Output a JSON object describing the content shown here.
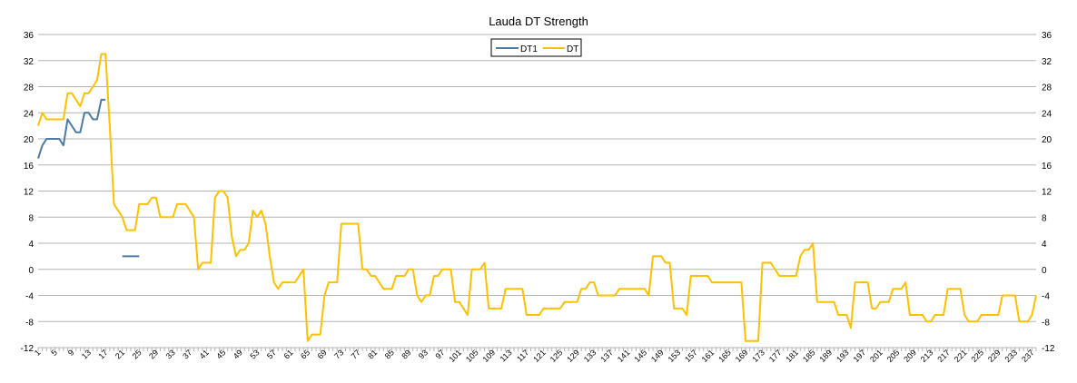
{
  "chart_data": {
    "type": "line",
    "title": "Lauda DT Strength",
    "xlabel": "",
    "ylabel": "",
    "ylim": [
      -12,
      36
    ],
    "yticks": [
      -12,
      -8,
      -4,
      0,
      4,
      8,
      12,
      16,
      20,
      24,
      28,
      32,
      36
    ],
    "xlim": [
      1,
      238
    ],
    "xtick_step": 4,
    "grid": "horizontal",
    "legend_position": "top-center",
    "colors": {
      "DT1": "#4a7ba7",
      "DT": "#ffc000",
      "grid": "#b3b3b3"
    },
    "series": [
      {
        "name": "DT1",
        "points": [
          [
            1,
            17
          ],
          [
            2,
            19
          ],
          [
            3,
            20
          ],
          [
            4,
            20
          ],
          [
            5,
            20
          ],
          [
            6,
            20
          ],
          [
            7,
            19
          ],
          [
            8,
            23
          ],
          [
            9,
            22
          ],
          [
            10,
            21
          ],
          [
            11,
            21
          ],
          [
            12,
            24
          ],
          [
            13,
            24
          ],
          [
            14,
            23
          ],
          [
            15,
            23
          ],
          [
            16,
            26
          ],
          [
            17,
            26
          ]
        ],
        "extra_segments": [
          [
            [
              21,
              2
            ],
            [
              25,
              2
            ]
          ]
        ]
      },
      {
        "name": "DT",
        "points": [
          [
            1,
            22
          ],
          [
            2,
            24
          ],
          [
            3,
            23
          ],
          [
            4,
            23
          ],
          [
            5,
            23
          ],
          [
            6,
            23
          ],
          [
            7,
            23
          ],
          [
            8,
            27
          ],
          [
            9,
            27
          ],
          [
            10,
            26
          ],
          [
            11,
            25
          ],
          [
            12,
            27
          ],
          [
            13,
            27
          ],
          [
            14,
            28
          ],
          [
            15,
            29
          ],
          [
            16,
            33
          ],
          [
            17,
            33
          ],
          [
            18,
            22
          ],
          [
            19,
            10
          ],
          [
            20,
            9
          ],
          [
            21,
            8
          ],
          [
            22,
            6
          ],
          [
            23,
            6
          ],
          [
            24,
            6
          ],
          [
            25,
            10
          ],
          [
            26,
            10
          ],
          [
            27,
            10
          ],
          [
            28,
            11
          ],
          [
            29,
            11
          ],
          [
            30,
            8
          ],
          [
            31,
            8
          ],
          [
            32,
            8
          ],
          [
            33,
            8
          ],
          [
            34,
            10
          ],
          [
            35,
            10
          ],
          [
            36,
            10
          ],
          [
            37,
            9
          ],
          [
            38,
            8
          ],
          [
            39,
            0
          ],
          [
            40,
            1
          ],
          [
            41,
            1
          ],
          [
            42,
            1
          ],
          [
            43,
            11
          ],
          [
            44,
            12
          ],
          [
            45,
            12
          ],
          [
            46,
            11
          ],
          [
            47,
            5
          ],
          [
            48,
            2
          ],
          [
            49,
            3
          ],
          [
            50,
            3
          ],
          [
            51,
            4
          ],
          [
            52,
            9
          ],
          [
            53,
            8
          ],
          [
            54,
            9
          ],
          [
            55,
            7
          ],
          [
            56,
            2
          ],
          [
            57,
            -2
          ],
          [
            58,
            -3
          ],
          [
            59,
            -2
          ],
          [
            60,
            -2
          ],
          [
            61,
            -2
          ],
          [
            62,
            -2
          ],
          [
            63,
            -1
          ],
          [
            64,
            0
          ],
          [
            65,
            -11
          ],
          [
            66,
            -10
          ],
          [
            67,
            -10
          ],
          [
            68,
            -10
          ],
          [
            69,
            -4
          ],
          [
            70,
            -2
          ],
          [
            71,
            -2
          ],
          [
            72,
            -2
          ],
          [
            73,
            7
          ],
          [
            74,
            7
          ],
          [
            75,
            7
          ],
          [
            76,
            7
          ],
          [
            77,
            7
          ],
          [
            78,
            0
          ],
          [
            79,
            0
          ],
          [
            80,
            -1
          ],
          [
            81,
            -1
          ],
          [
            82,
            -2
          ],
          [
            83,
            -3
          ],
          [
            84,
            -3
          ],
          [
            85,
            -3
          ],
          [
            86,
            -1
          ],
          [
            87,
            -1
          ],
          [
            88,
            -1
          ],
          [
            89,
            0
          ],
          [
            90,
            0
          ],
          [
            91,
            -4
          ],
          [
            92,
            -5
          ],
          [
            93,
            -4
          ],
          [
            94,
            -4
          ],
          [
            95,
            -1
          ],
          [
            96,
            -1
          ],
          [
            97,
            0
          ],
          [
            98,
            0
          ],
          [
            99,
            0
          ],
          [
            100,
            -5
          ],
          [
            101,
            -5
          ],
          [
            102,
            -6
          ],
          [
            103,
            -7
          ],
          [
            104,
            0
          ],
          [
            105,
            0
          ],
          [
            106,
            0
          ],
          [
            107,
            1
          ],
          [
            108,
            -6
          ],
          [
            109,
            -6
          ],
          [
            110,
            -6
          ],
          [
            111,
            -6
          ],
          [
            112,
            -3
          ],
          [
            113,
            -3
          ],
          [
            114,
            -3
          ],
          [
            115,
            -3
          ],
          [
            116,
            -3
          ],
          [
            117,
            -7
          ],
          [
            118,
            -7
          ],
          [
            119,
            -7
          ],
          [
            120,
            -7
          ],
          [
            121,
            -6
          ],
          [
            122,
            -6
          ],
          [
            123,
            -6
          ],
          [
            124,
            -6
          ],
          [
            125,
            -6
          ],
          [
            126,
            -5
          ],
          [
            127,
            -5
          ],
          [
            128,
            -5
          ],
          [
            129,
            -5
          ],
          [
            130,
            -3
          ],
          [
            131,
            -3
          ],
          [
            132,
            -2
          ],
          [
            133,
            -2
          ],
          [
            134,
            -4
          ],
          [
            135,
            -4
          ],
          [
            136,
            -4
          ],
          [
            137,
            -4
          ],
          [
            138,
            -4
          ],
          [
            139,
            -3
          ],
          [
            140,
            -3
          ],
          [
            141,
            -3
          ],
          [
            142,
            -3
          ],
          [
            143,
            -3
          ],
          [
            144,
            -3
          ],
          [
            145,
            -3
          ],
          [
            146,
            -4
          ],
          [
            147,
            2
          ],
          [
            148,
            2
          ],
          [
            149,
            2
          ],
          [
            150,
            1
          ],
          [
            151,
            1
          ],
          [
            152,
            -6
          ],
          [
            153,
            -6
          ],
          [
            154,
            -6
          ],
          [
            155,
            -7
          ],
          [
            156,
            -1
          ],
          [
            157,
            -1
          ],
          [
            158,
            -1
          ],
          [
            159,
            -1
          ],
          [
            160,
            -1
          ],
          [
            161,
            -2
          ],
          [
            162,
            -2
          ],
          [
            163,
            -2
          ],
          [
            164,
            -2
          ],
          [
            165,
            -2
          ],
          [
            166,
            -2
          ],
          [
            167,
            -2
          ],
          [
            168,
            -2
          ],
          [
            169,
            -11
          ],
          [
            170,
            -11
          ],
          [
            171,
            -11
          ],
          [
            172,
            -11
          ],
          [
            173,
            1
          ],
          [
            174,
            1
          ],
          [
            175,
            1
          ],
          [
            176,
            0
          ],
          [
            177,
            -1
          ],
          [
            178,
            -1
          ],
          [
            179,
            -1
          ],
          [
            180,
            -1
          ],
          [
            181,
            -1
          ],
          [
            182,
            2
          ],
          [
            183,
            3
          ],
          [
            184,
            3
          ],
          [
            185,
            4
          ],
          [
            186,
            -5
          ],
          [
            187,
            -5
          ],
          [
            188,
            -5
          ],
          [
            189,
            -5
          ],
          [
            190,
            -5
          ],
          [
            191,
            -7
          ],
          [
            192,
            -7
          ],
          [
            193,
            -7
          ],
          [
            194,
            -9
          ],
          [
            195,
            -2
          ],
          [
            196,
            -2
          ],
          [
            197,
            -2
          ],
          [
            198,
            -2
          ],
          [
            199,
            -6
          ],
          [
            200,
            -6
          ],
          [
            201,
            -5
          ],
          [
            202,
            -5
          ],
          [
            203,
            -5
          ],
          [
            204,
            -3
          ],
          [
            205,
            -3
          ],
          [
            206,
            -3
          ],
          [
            207,
            -2
          ],
          [
            208,
            -7
          ],
          [
            209,
            -7
          ],
          [
            210,
            -7
          ],
          [
            211,
            -7
          ],
          [
            212,
            -8
          ],
          [
            213,
            -8
          ],
          [
            214,
            -7
          ],
          [
            215,
            -7
          ],
          [
            216,
            -7
          ],
          [
            217,
            -3
          ],
          [
            218,
            -3
          ],
          [
            219,
            -3
          ],
          [
            220,
            -3
          ],
          [
            221,
            -7
          ],
          [
            222,
            -8
          ],
          [
            223,
            -8
          ],
          [
            224,
            -8
          ],
          [
            225,
            -7
          ],
          [
            226,
            -7
          ],
          [
            227,
            -7
          ],
          [
            228,
            -7
          ],
          [
            229,
            -7
          ],
          [
            230,
            -4
          ],
          [
            231,
            -4
          ],
          [
            232,
            -4
          ],
          [
            233,
            -4
          ],
          [
            234,
            -8
          ],
          [
            235,
            -8
          ],
          [
            236,
            -8
          ],
          [
            237,
            -7
          ],
          [
            238,
            -4
          ]
        ]
      }
    ]
  }
}
